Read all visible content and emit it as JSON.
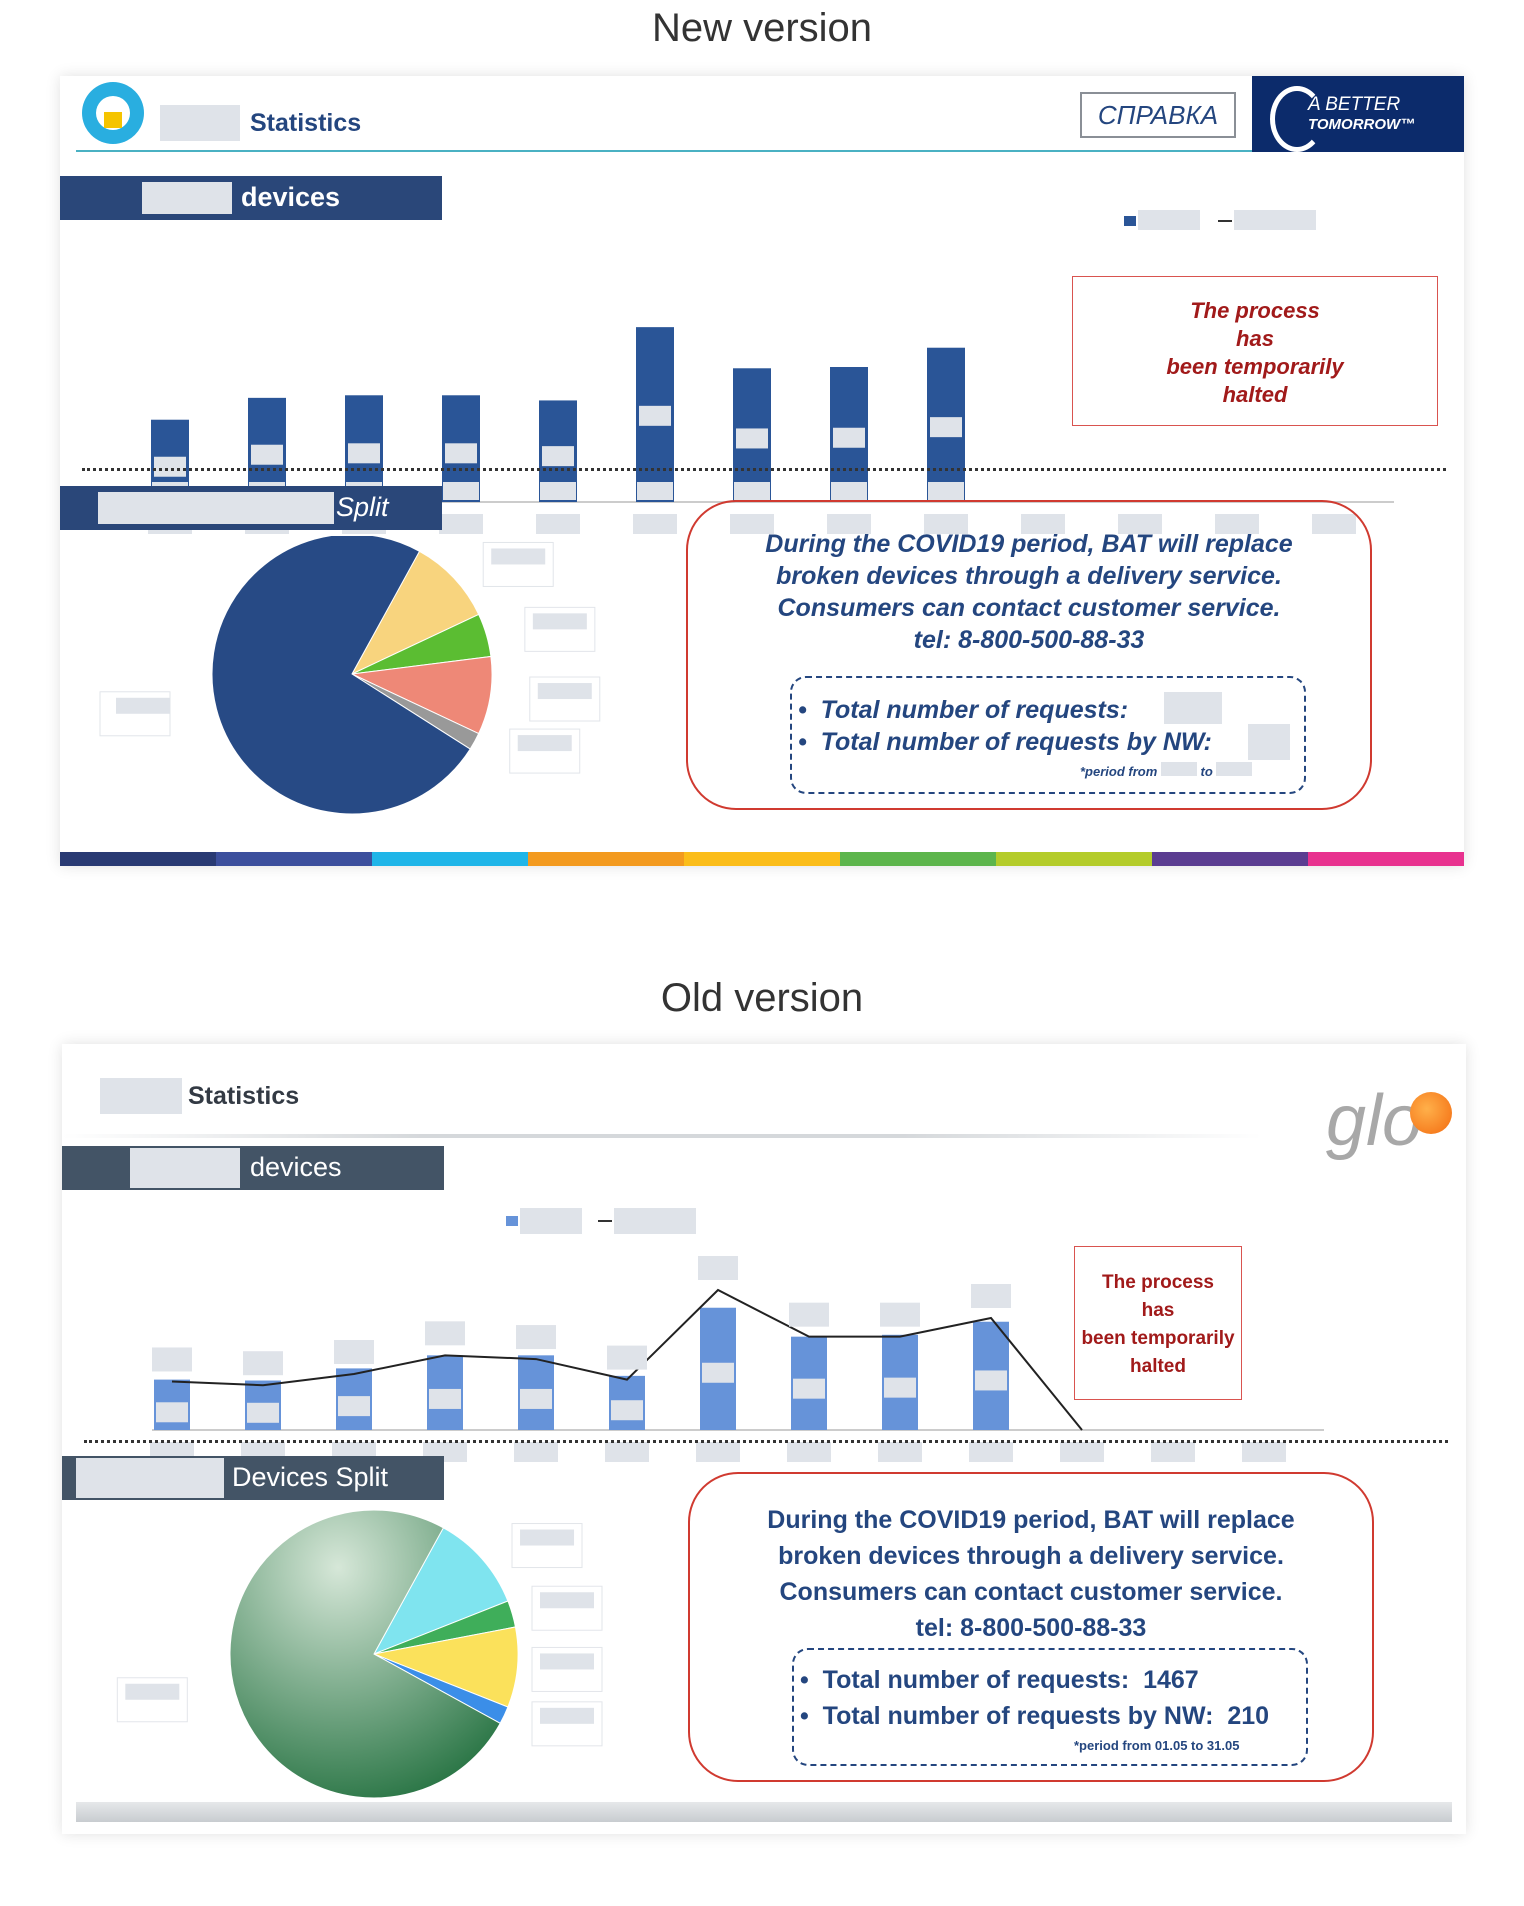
{
  "headings": {
    "new": "New version",
    "old": "Old version"
  },
  "new_slide": {
    "title": "Statistics",
    "spravka": "СПРАВКА",
    "brand": {
      "line1": "A BETTER",
      "line2": "TOMORROW™"
    },
    "section1_title": "devices",
    "section2_title": "Split",
    "halted_text": [
      "The process",
      "has",
      "been temporarily",
      "halted"
    ],
    "covid_text": [
      "During the COVID19 period, BAT will replace",
      "broken devices through a delivery service.",
      "Consumers can contact customer service.",
      "tel: 8-800-500-88-33"
    ],
    "requests": {
      "line1": "Total number of requests:",
      "line2": "Total number of requests by NW:",
      "period_prefix": "*period from",
      "period_mid": "to"
    },
    "colors": {
      "bar": "#2a5597",
      "header": "#2a4779",
      "accent": "#a11a1a"
    },
    "color_strip": [
      "#293a73",
      "#3c4f9d",
      "#1fb5e8",
      "#f39a1f",
      "#fbbd1a",
      "#5db54c",
      "#b4cc2a",
      "#5b3d91",
      "#e8328f"
    ]
  },
  "old_slide": {
    "title": "Statistics",
    "logo_text": "glo",
    "section1_title": "devices",
    "section2_title": "Devices Split",
    "halted_text": [
      "The process",
      "has",
      "been temporarily",
      "halted"
    ],
    "covid_text": [
      "During the COVID19 period, BAT will replace",
      "broken devices through a delivery service.",
      "Consumers can contact customer service.",
      "tel: 8-800-500-88-33"
    ],
    "requests": {
      "line1": "Total number of requests:",
      "value1": "1467",
      "line2": "Total number of requests by NW:",
      "value2": "210",
      "period": "*period from 01.05 to 31.05"
    },
    "colors": {
      "bar": "#6693d9",
      "header": "#435466",
      "line": "#222222"
    }
  },
  "chart_data": [
    {
      "type": "bar",
      "panel": "new",
      "note": "",
      "categories_count": 13,
      "values": [
        64,
        81,
        83,
        83,
        79,
        136,
        104,
        105,
        120,
        null,
        null,
        null,
        null
      ],
      "ylim": [
        0,
        140
      ]
    },
    {
      "type": "pie",
      "panel": "new",
      "slices": [
        {
          "value": 74,
          "color": "#274a85"
        },
        {
          "value": 10,
          "color": "#f8d47e"
        },
        {
          "value": 5,
          "color": "#5bbd32"
        },
        {
          "value": 9,
          "color": "#ee8877"
        },
        {
          "value": 2,
          "color": "#999999"
        }
      ]
    },
    {
      "type": "bar",
      "panel": "old",
      "categories_count": 13,
      "values": [
        54,
        53,
        66,
        80,
        80,
        58,
        131,
        100,
        102,
        116,
        null,
        null,
        null
      ],
      "line": [
        52,
        48,
        60,
        80,
        76,
        54,
        150,
        100,
        100,
        120,
        0
      ],
      "ylim": [
        0,
        150
      ]
    },
    {
      "type": "pie",
      "panel": "old",
      "slices": [
        {
          "value": 75,
          "color": "#3d7c4e"
        },
        {
          "value": 11,
          "color": "#7fe4ef"
        },
        {
          "value": 3,
          "color": "#3fae5a"
        },
        {
          "value": 9,
          "color": "#fbe15b"
        },
        {
          "value": 2,
          "color": "#3b8ee8"
        }
      ]
    }
  ]
}
